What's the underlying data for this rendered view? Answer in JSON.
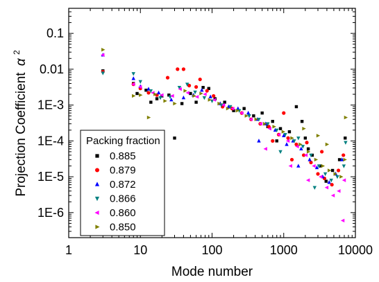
{
  "chart_data": {
    "type": "scatter",
    "xlabel": "Mode number",
    "ylabel": "Projection Coefficient",
    "ylabel_symbol": "α",
    "ylabel_superscript": "2",
    "xscale": "log",
    "yscale": "log",
    "xlim": [
      1,
      10000
    ],
    "ylim": [
      2e-07,
      0.5
    ],
    "x_ticks": [
      {
        "value": 1,
        "label": "1"
      },
      {
        "value": 10,
        "label": "10"
      },
      {
        "value": 100,
        "label": "100"
      },
      {
        "value": 1000,
        "label": "1000"
      },
      {
        "value": 10000,
        "label": "10000"
      }
    ],
    "y_ticks": [
      {
        "value": 0.1,
        "label": "0.1"
      },
      {
        "value": 0.01,
        "label": "0.01"
      },
      {
        "value": 0.001,
        "label": "1E-3"
      },
      {
        "value": 0.0001,
        "label": "1E-4"
      },
      {
        "value": 1e-05,
        "label": "1E-5"
      },
      {
        "value": 1e-06,
        "label": "1E-6"
      }
    ],
    "legend": {
      "title": "Packing fraction",
      "placement": "bottom-left"
    },
    "series": [
      {
        "name": "0.885",
        "color": "#000000",
        "marker": "square",
        "points": [
          [
            3,
            0.009
          ],
          [
            8,
            0.004
          ],
          [
            9,
            0.0021
          ],
          [
            12,
            0.0026
          ],
          [
            14,
            0.0012
          ],
          [
            17,
            0.0015
          ],
          [
            20,
            0.0018
          ],
          [
            25,
            0.0019
          ],
          [
            30,
            0.00012
          ],
          [
            38,
            0.0011
          ],
          [
            50,
            0.0021
          ],
          [
            60,
            0.0012
          ],
          [
            75,
            0.0031
          ],
          [
            90,
            0.0029
          ],
          [
            110,
            0.0015
          ],
          [
            150,
            0.0012
          ],
          [
            200,
            0.0007
          ],
          [
            280,
            0.0008
          ],
          [
            380,
            0.0005
          ],
          [
            500,
            0.0006
          ],
          [
            700,
            0.00035
          ],
          [
            900,
            0.00022
          ],
          [
            1200,
            0.00018
          ],
          [
            1500,
            0.0009
          ],
          [
            2000,
            0.00012
          ],
          [
            2500,
            4e-05
          ],
          [
            3200,
            2e-05
          ],
          [
            3900,
            7.5e-06
          ],
          [
            4800,
            1.5e-05
          ],
          [
            6000,
            3e-05
          ],
          [
            7200,
            0.00012
          ],
          [
            2200,
            6e-05
          ],
          [
            800,
            0.0001
          ],
          [
            600,
            0.00025
          ],
          [
            1800,
            0.00035
          ]
        ]
      },
      {
        "name": "0.879",
        "color": "#ff0000",
        "marker": "circle",
        "points": [
          [
            3,
            0.0085
          ],
          [
            8,
            0.0038
          ],
          [
            10,
            0.0029
          ],
          [
            13,
            0.0022
          ],
          [
            17,
            0.0019
          ],
          [
            24,
            0.0058
          ],
          [
            33,
            0.01
          ],
          [
            40,
            0.01
          ],
          [
            48,
            0.0035
          ],
          [
            60,
            0.0032
          ],
          [
            68,
            0.0052
          ],
          [
            85,
            0.0025
          ],
          [
            105,
            0.0018
          ],
          [
            140,
            0.0009
          ],
          [
            190,
            0.0008
          ],
          [
            260,
            0.0006
          ],
          [
            350,
            0.0004
          ],
          [
            470,
            0.0003
          ],
          [
            620,
            0.00025
          ],
          [
            850,
            0.00015
          ],
          [
            1150,
            0.00012
          ],
          [
            1500,
            8e-05
          ],
          [
            1900,
            4e-05
          ],
          [
            2400,
            2.5e-05
          ],
          [
            3000,
            1.2e-05
          ],
          [
            3700,
            9e-06
          ],
          [
            4700,
            6e-06
          ],
          [
            5800,
            1.5e-05
          ],
          [
            6800,
            4e-05
          ],
          [
            1000,
            0.0006
          ],
          [
            700,
            0.0001
          ],
          [
            2100,
            9e-05
          ],
          [
            1300,
            3e-05
          ],
          [
            3400,
            5e-05
          ]
        ]
      },
      {
        "name": "0.872",
        "color": "#0000ff",
        "marker": "triangle-up",
        "points": [
          [
            3,
            0.025
          ],
          [
            8,
            0.0055
          ],
          [
            10,
            0.0033
          ],
          [
            13,
            0.0028
          ],
          [
            18,
            0.0022
          ],
          [
            27,
            0.0014
          ],
          [
            40,
            0.0016
          ],
          [
            55,
            0.0019
          ],
          [
            72,
            0.0026
          ],
          [
            95,
            0.0017
          ],
          [
            130,
            0.0011
          ],
          [
            170,
            0.0009
          ],
          [
            230,
            0.0008
          ],
          [
            320,
            0.0006
          ],
          [
            430,
            0.0004
          ],
          [
            560,
            0.0003
          ],
          [
            760,
            0.0002
          ],
          [
            1000,
            0.00014
          ],
          [
            1350,
            0.0001
          ],
          [
            1750,
            6e-05
          ],
          [
            2300,
            3e-05
          ],
          [
            2900,
            1.8e-05
          ],
          [
            3500,
            1e-05
          ],
          [
            4300,
            7e-06
          ],
          [
            5300,
            1.2e-05
          ],
          [
            6500,
            3e-05
          ],
          [
            1100,
            8e-05
          ],
          [
            1600,
            2e-05
          ],
          [
            450,
            0.0001
          ]
        ]
      },
      {
        "name": "0.866",
        "color": "#008080",
        "marker": "triangle-down",
        "points": [
          [
            3,
            0.0078
          ],
          [
            8,
            0.0075
          ],
          [
            10,
            0.0045
          ],
          [
            14,
            0.0025
          ],
          [
            19,
            0.0016
          ],
          [
            26,
            0.0017
          ],
          [
            35,
            0.0031
          ],
          [
            45,
            0.0038
          ],
          [
            58,
            0.0023
          ],
          [
            78,
            0.0016
          ],
          [
            100,
            0.0013
          ],
          [
            135,
            0.001
          ],
          [
            180,
            0.0009
          ],
          [
            240,
            0.0007
          ],
          [
            330,
            0.0005
          ],
          [
            450,
            0.0004
          ],
          [
            600,
            0.0003
          ],
          [
            800,
            0.0002
          ],
          [
            1050,
            0.00015
          ],
          [
            1400,
            0.0001
          ],
          [
            1850,
            7e-05
          ],
          [
            2400,
            4e-05
          ],
          [
            3100,
            2e-05
          ],
          [
            3800,
            1.2e-05
          ],
          [
            4600,
            8e-06
          ],
          [
            5600,
            1e-05
          ],
          [
            6900,
            2e-05
          ],
          [
            7300,
            9e-05
          ],
          [
            2700,
            5e-06
          ],
          [
            1600,
            0.00012
          ],
          [
            900,
            5e-05
          ]
        ]
      },
      {
        "name": "0.860",
        "color": "#ff00ff",
        "marker": "triangle-left",
        "points": [
          [
            3,
            0.025
          ],
          [
            8,
            0.0038
          ],
          [
            10,
            0.0032
          ],
          [
            15,
            0.0022
          ],
          [
            20,
            0.0019
          ],
          [
            28,
            0.0018
          ],
          [
            36,
            0.0028
          ],
          [
            46,
            0.0022
          ],
          [
            62,
            0.0017
          ],
          [
            80,
            0.002
          ],
          [
            108,
            0.0014
          ],
          [
            145,
            0.001
          ],
          [
            195,
            0.0008
          ],
          [
            260,
            0.0006
          ],
          [
            350,
            0.0004
          ],
          [
            480,
            0.0003
          ],
          [
            640,
            0.00022
          ],
          [
            860,
            0.00015
          ],
          [
            1150,
            0.0001
          ],
          [
            1550,
            7e-05
          ],
          [
            2050,
            4e-05
          ],
          [
            2650,
            2e-05
          ],
          [
            3300,
            1e-05
          ],
          [
            4000,
            5e-06
          ],
          [
            4900,
            3e-06
          ],
          [
            5900,
            4e-06
          ],
          [
            6700,
            6e-07
          ],
          [
            7000,
            8e-06
          ],
          [
            1250,
            2e-05
          ],
          [
            560,
            6e-05
          ],
          [
            2200,
            8e-06
          ]
        ]
      },
      {
        "name": "0.850",
        "color": "#808000",
        "marker": "triangle-right",
        "points": [
          [
            3,
            0.035
          ],
          [
            8,
            0.0018
          ],
          [
            10,
            0.0019
          ],
          [
            13,
            0.00045
          ],
          [
            16,
            0.002
          ],
          [
            22,
            0.0013
          ],
          [
            30,
            0.0011
          ],
          [
            42,
            0.0025
          ],
          [
            56,
            0.0018
          ],
          [
            70,
            0.0021
          ],
          [
            92,
            0.0014
          ],
          [
            125,
            0.0011
          ],
          [
            165,
            0.0008
          ],
          [
            225,
            0.0007
          ],
          [
            300,
            0.0005
          ],
          [
            410,
            0.0004
          ],
          [
            540,
            0.0003
          ],
          [
            730,
            0.00025
          ],
          [
            980,
            0.00018
          ],
          [
            1300,
            0.00012
          ],
          [
            1700,
            8e-05
          ],
          [
            2200,
            5e-05
          ],
          [
            2800,
            3e-05
          ],
          [
            3500,
            2e-05
          ],
          [
            4300,
            1.5e-05
          ],
          [
            5200,
            1.2e-05
          ],
          [
            6300,
            1e-05
          ],
          [
            7100,
            3e-05
          ],
          [
            7300,
            0.00045
          ],
          [
            1900,
            0.00022
          ],
          [
            3000,
            0.00014
          ],
          [
            4000,
            8e-05
          ]
        ]
      }
    ]
  }
}
